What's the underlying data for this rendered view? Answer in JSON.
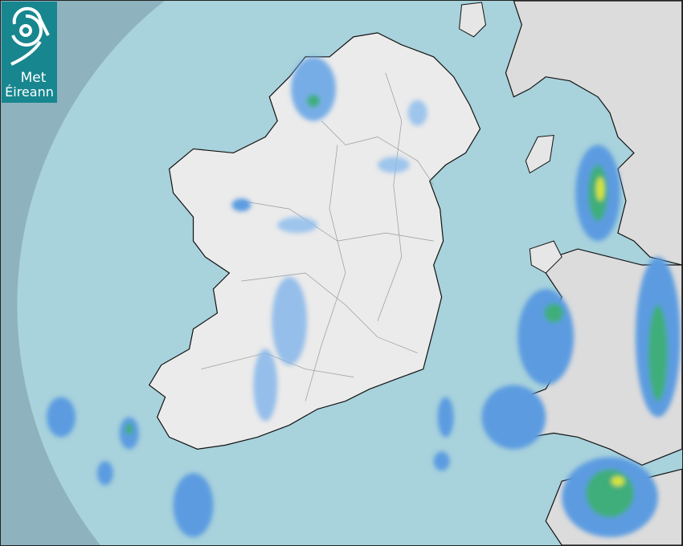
{
  "logo": {
    "line1": "Met",
    "line2": "Éireann",
    "color": "#17868f"
  },
  "map": {
    "type": "rainfall radar",
    "colors": {
      "outside_coverage": "#8fb2bf",
      "sea": "#a8d2dc",
      "land": "#ececec",
      "rain_light": "#5b9be0",
      "rain_moderate": "#3fae7a",
      "rain_heavy": "#d8e53a"
    }
  }
}
